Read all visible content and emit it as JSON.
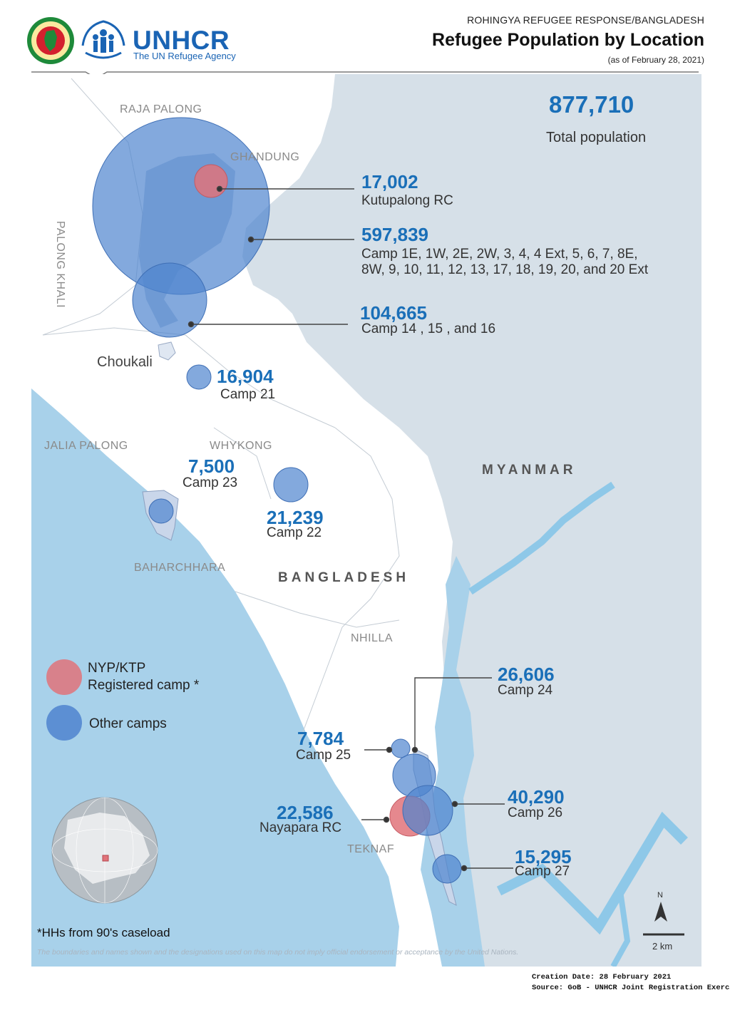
{
  "header": {
    "org_line": "ROHINGYA REFUGEE RESPONSE/BANGLADESH",
    "title": "Refugee Population by Location",
    "date": "(as of February 28, 2021)",
    "logo_name": "UNHCR",
    "logo_tagline": "The UN Refugee Agency"
  },
  "summary": {
    "total_value": "877,710",
    "total_label": "Total population"
  },
  "locations": [
    {
      "value": "17,002",
      "label": "Kutupalong RC",
      "type": "registered"
    },
    {
      "value": "597,839",
      "label_line1": "Camp 1E, 1W, 2E, 2W, 3, 4, 4 Ext, 5, 6, 7, 8E,",
      "label_line2": "8W, 9, 10, 11, 12, 13, 17, 18, 19, 20, and 20 Ext",
      "type": "other"
    },
    {
      "value": "104,665",
      "label": "Camp 14 , 15 , and 16",
      "type": "other"
    },
    {
      "value": "16,904",
      "label": "Camp 21",
      "type": "other"
    },
    {
      "value": "7,500",
      "label": "Camp 23",
      "type": "other"
    },
    {
      "value": "21,239",
      "label": "Camp 22",
      "type": "other"
    },
    {
      "value": "26,606",
      "label": "Camp 24",
      "type": "other"
    },
    {
      "value": "7,784",
      "label": "Camp 25",
      "type": "other"
    },
    {
      "value": "40,290",
      "label": "Camp 26",
      "type": "other"
    },
    {
      "value": "22,586",
      "label": "Nayapara RC",
      "type": "registered"
    },
    {
      "value": "15,295",
      "label": "Camp 27",
      "type": "other"
    }
  ],
  "place_names": {
    "raja_palong": "RAJA PALONG",
    "ghandung": "GHANDUNG",
    "palong_khali": "PALONG KHALI",
    "choukali": "Choukali",
    "jalia_palong": "JALIA PALONG",
    "whykong": "WHYKONG",
    "baharchhara": "BAHARCHHARA",
    "nhilla": "NHILLA",
    "teknaf": "TEKNAF",
    "myanmar": "MYANMAR",
    "bangladesh": "BANGLADESH"
  },
  "legend": {
    "registered_line1": "NYP/KTP",
    "registered_line2": "Registered camp *",
    "other": "Other camps",
    "registered_color": "#e0737a",
    "other_color": "#4f84cf"
  },
  "footer": {
    "note": "*HHs from 90's caseload",
    "disclaimer": "The boundaries and names shown and the designations used on this map do not imply official endorsement or acceptance by the United Nations.",
    "creation": "Creation Date: 28 February 2021",
    "source": "Source: GoB - UNHCR Joint Registration Exercise"
  },
  "map_extras": {
    "north_label": "N",
    "scale_label": "2 km",
    "colors": {
      "sea": "#a8d1ea",
      "myanmar": "#d6e0e8",
      "land": "#ffffff",
      "river": "#8ec8e8",
      "accent": "#1a6fb8"
    }
  }
}
